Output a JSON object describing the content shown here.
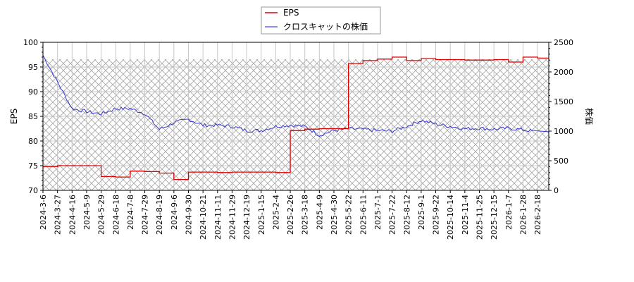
{
  "chart_data": {
    "type": "line",
    "title": "",
    "xlabel": "",
    "ylabel": "EPS",
    "y2label": "株価",
    "ylim": [
      70,
      100
    ],
    "y2lim": [
      0,
      2500
    ],
    "yticks": [
      70,
      75,
      80,
      85,
      90,
      95,
      100
    ],
    "y2ticks": [
      0,
      500,
      1000,
      1500,
      2000,
      2500
    ],
    "grid": true,
    "legend_position": "top-center",
    "categories": [
      "2024-3-6",
      "2024-3-27",
      "2024-4-16",
      "2024-5-9",
      "2024-5-29",
      "2024-6-18",
      "2024-7-8",
      "2024-7-29",
      "2024-8-19",
      "2024-9-6",
      "2024-9-30",
      "2024-10-21",
      "2024-11-11",
      "2024-11-29",
      "2024-12-19",
      "2025-1-15",
      "2025-2-4",
      "2025-2-26",
      "2025-3-18",
      "2025-4-9",
      "2025-4-30",
      "2025-5-22",
      "2025-6-11",
      "2025-7-1",
      "2025-7-22",
      "2025-8-12",
      "2025-9-1",
      "2025-9-22",
      "2025-10-14",
      "2025-11-4",
      "2025-11-25",
      "2025-12-15",
      "2026-1-7",
      "2026-1-28",
      "2026-2-18"
    ],
    "series": [
      {
        "name": "EPS",
        "color": "#dd0000",
        "axis": "left",
        "values": [
          74.8,
          75.0,
          75.0,
          75.0,
          72.8,
          72.7,
          73.9,
          73.8,
          73.5,
          72.2,
          73.7,
          73.7,
          73.6,
          73.7,
          73.7,
          73.7,
          73.6,
          82.1,
          82.4,
          82.5,
          82.5,
          95.7,
          96.3,
          96.6,
          97.0,
          96.3,
          96.7,
          96.5,
          96.5,
          96.4,
          96.4,
          96.5,
          96.0,
          97.0,
          96.8
        ]
      },
      {
        "name": "クロスキャットの株価",
        "color": "#3333cc",
        "axis": "right",
        "values": [
          2280,
          1830,
          1380,
          1330,
          1290,
          1380,
          1380,
          1300,
          1030,
          1140,
          1200,
          1100,
          1100,
          1080,
          1010,
          1010,
          1080,
          1100,
          1080,
          930,
          1010,
          1040,
          1030,
          1010,
          1000,
          1080,
          1180,
          1120,
          1080,
          1040,
          1050,
          1030,
          1050,
          1020,
          990
        ]
      }
    ],
    "legend": [
      "EPS",
      "クロスキャットの株価"
    ]
  }
}
